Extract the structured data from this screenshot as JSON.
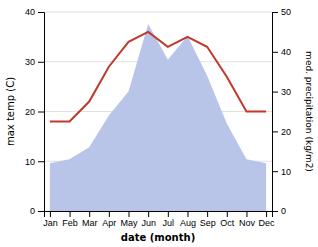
{
  "chart_data": {
    "type": "line",
    "categories": [
      "Jan",
      "Feb",
      "Mar",
      "Apr",
      "May",
      "Jun",
      "Jul",
      "Aug",
      "Sep",
      "Oct",
      "Nov",
      "Dec"
    ],
    "series": [
      {
        "type": "area",
        "color": "#b8c4e8",
        "axis": "y2",
        "values": [
          12,
          13,
          16,
          24,
          30,
          47,
          38,
          44,
          34,
          22,
          13,
          12
        ]
      },
      {
        "type": "line",
        "color": "#c0392b",
        "values": [
          18,
          18,
          22,
          29,
          34,
          36,
          33,
          35,
          33,
          27,
          20,
          20
        ]
      }
    ],
    "xlabel": "date (month)",
    "ylabel": "max temp (C)",
    "y2label": "med. precipitation (kg/m2)",
    "ylim": [
      0,
      40
    ],
    "yticks": [
      0,
      10,
      20,
      30,
      40
    ],
    "y2lim": [
      0,
      50
    ],
    "y2ticks": [
      0,
      10,
      20,
      30,
      40,
      50
    ],
    "grid": true
  }
}
